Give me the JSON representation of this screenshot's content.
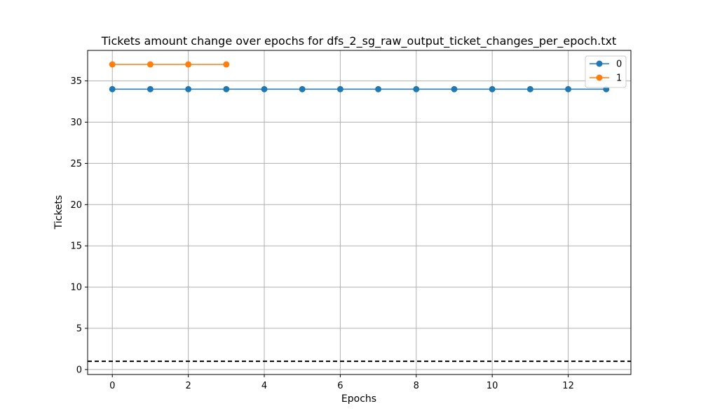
{
  "chart_data": {
    "type": "line",
    "title": "Tickets amount change over epochs for dfs_2_sg_raw_output_ticket_changes_per_epoch.txt",
    "xlabel": "Epochs",
    "ylabel": "Tickets",
    "xlim": [
      -0.65,
      13.65
    ],
    "ylim": [
      -0.6,
      38.7
    ],
    "xticks": [
      0,
      2,
      4,
      6,
      8,
      10,
      12
    ],
    "yticks": [
      0,
      5,
      10,
      15,
      20,
      25,
      30,
      35
    ],
    "grid": true,
    "legend_position": "top-right",
    "series": [
      {
        "name": "0",
        "color": "#1f77b4",
        "marker": "circle",
        "x": [
          0,
          1,
          2,
          3,
          4,
          5,
          6,
          7,
          8,
          9,
          10,
          11,
          12,
          13
        ],
        "y": [
          34,
          34,
          34,
          34,
          34,
          34,
          34,
          34,
          34,
          34,
          34,
          34,
          34,
          34
        ]
      },
      {
        "name": "1",
        "color": "#ff7f0e",
        "marker": "circle",
        "x": [
          0,
          1,
          2,
          3
        ],
        "y": [
          37,
          37,
          37,
          37
        ]
      }
    ],
    "reference_lines": [
      {
        "orientation": "horizontal",
        "y": 1,
        "style": "dashed",
        "color": "#000000"
      }
    ]
  }
}
